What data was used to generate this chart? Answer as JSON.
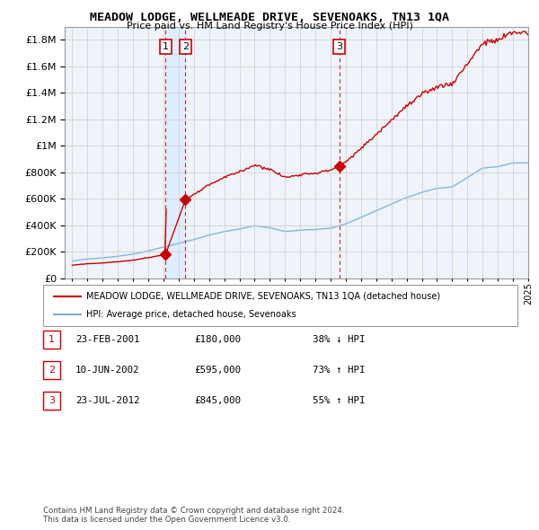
{
  "title": "MEADOW LODGE, WELLMEADE DRIVE, SEVENOAKS, TN13 1QA",
  "subtitle": "Price paid vs. HM Land Registry's House Price Index (HPI)",
  "legend_line1": "MEADOW LODGE, WELLMEADE DRIVE, SEVENOAKS, TN13 1QA (detached house)",
  "legend_line2": "HPI: Average price, detached house, Sevenoaks",
  "footnote1": "Contains HM Land Registry data © Crown copyright and database right 2024.",
  "footnote2": "This data is licensed under the Open Government Licence v3.0.",
  "sale_points": [
    {
      "num": 1,
      "date": "23-FEB-2001",
      "price": 180000,
      "pct": "38%",
      "dir": "↓",
      "x": 2001.14
    },
    {
      "num": 2,
      "date": "10-JUN-2002",
      "price": 595000,
      "pct": "73%",
      "dir": "↑",
      "x": 2002.45
    },
    {
      "num": 3,
      "date": "23-JUL-2012",
      "price": 845000,
      "pct": "55%",
      "dir": "↑",
      "x": 2012.56
    }
  ],
  "red_color": "#cc0000",
  "blue_color": "#7aafd4",
  "vline_color": "#cc0000",
  "shade_color": "#ddeeff",
  "grid_color": "#cccccc",
  "background_color": "#ffffff",
  "plot_bg_color": "#eef4fa",
  "ylim": [
    0,
    1900000
  ],
  "xlim": [
    1994.5,
    2025.0
  ],
  "figsize": [
    6.0,
    5.9
  ],
  "dpi": 100,
  "hpi_keyframes_x": [
    1995,
    1996,
    1997,
    1998,
    1999,
    2000,
    2001,
    2002,
    2003,
    2004,
    2005,
    2006,
    2007,
    2008,
    2009,
    2010,
    2011,
    2012,
    2013,
    2014,
    2015,
    2016,
    2017,
    2018,
    2019,
    2020,
    2021,
    2022,
    2023,
    2024
  ],
  "hpi_keyframes_y": [
    130000,
    145000,
    155000,
    168000,
    185000,
    210000,
    238000,
    265000,
    295000,
    330000,
    355000,
    375000,
    400000,
    385000,
    355000,
    365000,
    370000,
    380000,
    410000,
    460000,
    510000,
    560000,
    610000,
    650000,
    680000,
    690000,
    760000,
    830000,
    840000,
    870000
  ]
}
